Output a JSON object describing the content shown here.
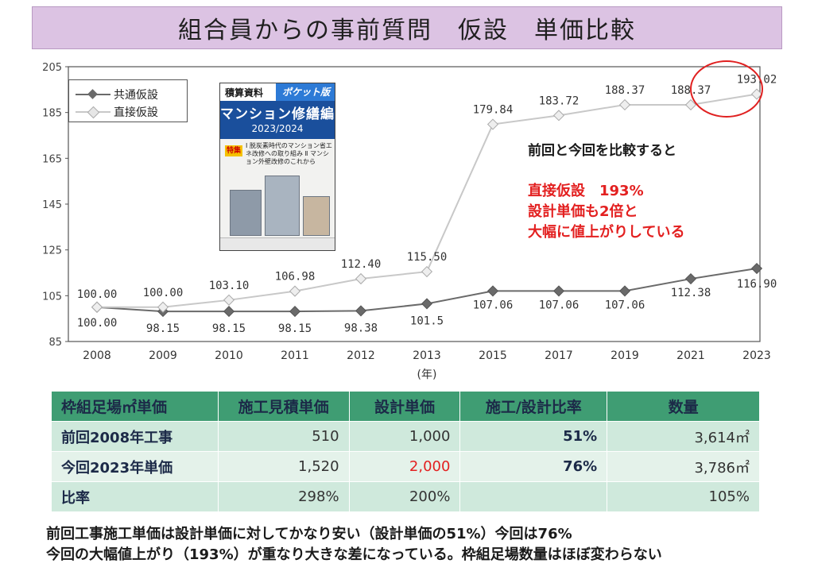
{
  "title": "組合員からの事前質問　仮設　単価比較",
  "chart_data": {
    "type": "line",
    "categories": [
      "2008",
      "2009",
      "2010",
      "2011",
      "2012",
      "2013",
      "2015",
      "2017",
      "2019",
      "2021",
      "2023"
    ],
    "series": [
      {
        "name": "共通仮設",
        "values": [
          100.0,
          98.15,
          98.15,
          98.15,
          98.38,
          101.5,
          107.06,
          107.06,
          107.06,
          112.38,
          116.9
        ],
        "labels": [
          "100.00",
          "98.15",
          "98.15",
          "98.15",
          "98.38",
          "101.5",
          "107.06",
          "107.06",
          "107.06",
          "112.38",
          "116.90"
        ],
        "color": "#6a6a6a"
      },
      {
        "name": "直接仮設",
        "values": [
          100.0,
          100.0,
          103.1,
          106.98,
          112.4,
          115.5,
          179.84,
          183.72,
          188.37,
          188.37,
          193.02
        ],
        "labels": [
          "100.00",
          "100.00",
          "103.10",
          "106.98",
          "112.40",
          "115.50",
          "179.84",
          "183.72",
          "188.37",
          "188.37",
          "193.02"
        ],
        "color": "#c8c8c8"
      }
    ],
    "yticks": [
      "85",
      "105",
      "125",
      "145",
      "165",
      "185",
      "205"
    ],
    "ylim": [
      85,
      205
    ],
    "xunit": "(年)",
    "legend": "top-left",
    "grid": false
  },
  "book": {
    "tag_left": "積算資料",
    "tag_right": "ポケット版",
    "title": "マンション修繕編",
    "year": "2023/2024",
    "badge": "特集",
    "note": "Ⅰ 脱炭素時代のマンション省エネ改修への取り組み Ⅱ マンション外壁改修のこれから"
  },
  "annotation": {
    "line1": "前回と今回を比較すると",
    "line2": "直接仮設　193%",
    "line3": "設計単価も2倍と",
    "line4": "大幅に値上がりしている"
  },
  "table": {
    "headers": [
      "枠組足場㎡単価",
      "施工見積単価",
      "設計単価",
      "施工/設計比率",
      "数量"
    ],
    "rows": [
      [
        "前回2008年工事",
        "510",
        "1,000",
        "51%",
        "3,614㎡"
      ],
      [
        "今回2023年単価",
        "1,520",
        "2,000",
        "76%",
        "3,786㎡"
      ],
      [
        "比率",
        "298%",
        "200%",
        "",
        "105%"
      ]
    ]
  },
  "summary": {
    "line1": "前回工事施工単価は設計単価に対してかなり安い（設計単価の51%）今回は76%",
    "line2": "今回の大幅値上がり（193%）が重なり大きな差になっている。枠組足場数量はほぼ変わらない"
  }
}
